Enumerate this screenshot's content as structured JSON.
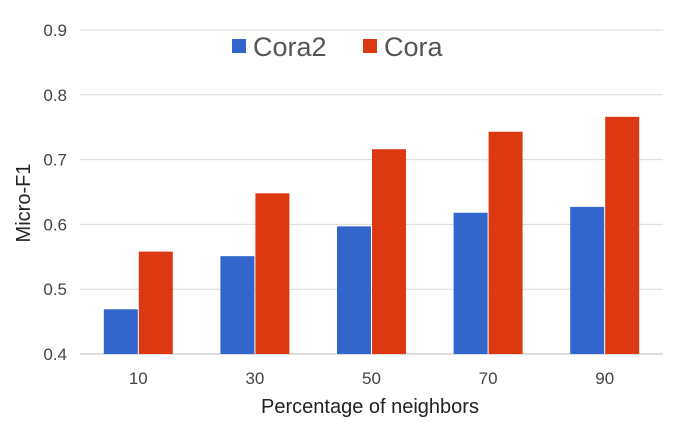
{
  "chart_data": {
    "type": "bar",
    "title": "",
    "xlabel": "Percentage of neighbors",
    "ylabel": "Micro-F1",
    "categories": [
      "10",
      "30",
      "50",
      "70",
      "90"
    ],
    "ylim": [
      0.4,
      0.9
    ],
    "yticks": [
      "0.4",
      "0.5",
      "0.6",
      "0.7",
      "0.8",
      "0.9"
    ],
    "grid": true,
    "legend_position": "top",
    "series": [
      {
        "name": "Cora2",
        "color": "#3366cc",
        "values": [
          0.469,
          0.551,
          0.597,
          0.618,
          0.627
        ]
      },
      {
        "name": "Cora",
        "color": "#dc3912",
        "values": [
          0.558,
          0.648,
          0.716,
          0.743,
          0.766
        ]
      }
    ]
  }
}
